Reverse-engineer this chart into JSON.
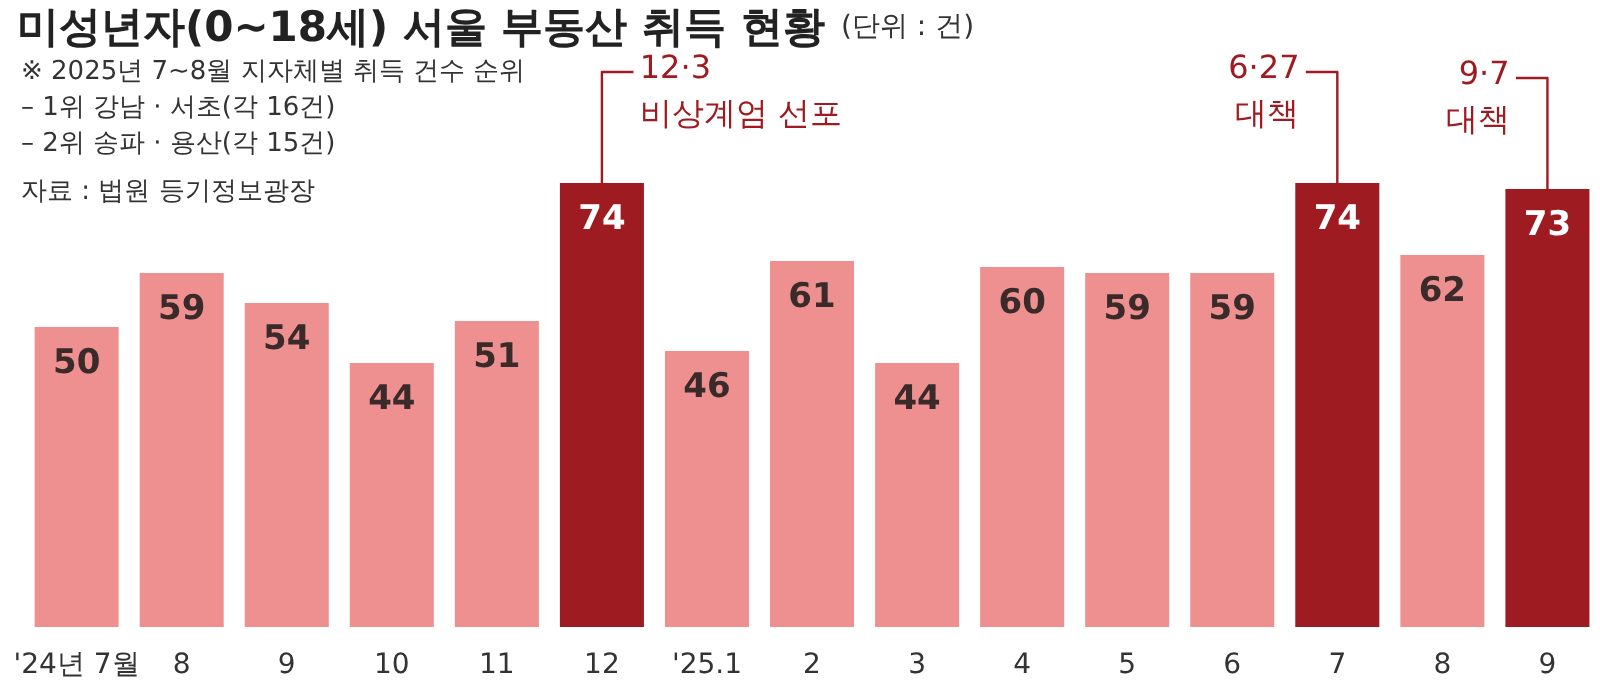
{
  "chart_data": {
    "type": "bar",
    "title": "미성년자(0~18세) 서울 부동산 취득 현황",
    "subtitle": "(단위 : 건)",
    "categories": [
      "'24년 7월",
      "8",
      "9",
      "10",
      "11",
      "12",
      "'25.1",
      "2",
      "3",
      "4",
      "5",
      "6",
      "7",
      "8",
      "9"
    ],
    "values": [
      50,
      59,
      54,
      44,
      51,
      74,
      46,
      61,
      44,
      60,
      59,
      59,
      74,
      62,
      73
    ],
    "colors": [
      "#ef9090",
      "#ef9090",
      "#ef9090",
      "#ef9090",
      "#ef9090",
      "#9e1b22",
      "#ef9090",
      "#ef9090",
      "#ef9090",
      "#ef9090",
      "#ef9090",
      "#ef9090",
      "#9e1b22",
      "#ef9090",
      "#9e1b22"
    ],
    "data_labels": true,
    "grid": false,
    "annotations": [
      "※ 2025년 7~8월 지자체별 취득 건수 순위\n  – 1위 강남 · 서초(각 16건)\n  – 2위 송파 · 용산(각 15건)",
      "자료 : 법원 등기정보광장",
      {
        "text": "12·3\n비상계엄 선포",
        "x": "12",
        "y": 74
      },
      {
        "text": "6·27\n대책",
        "x": "7",
        "y": 74
      },
      "9·7\n대책"
    ]
  }
}
